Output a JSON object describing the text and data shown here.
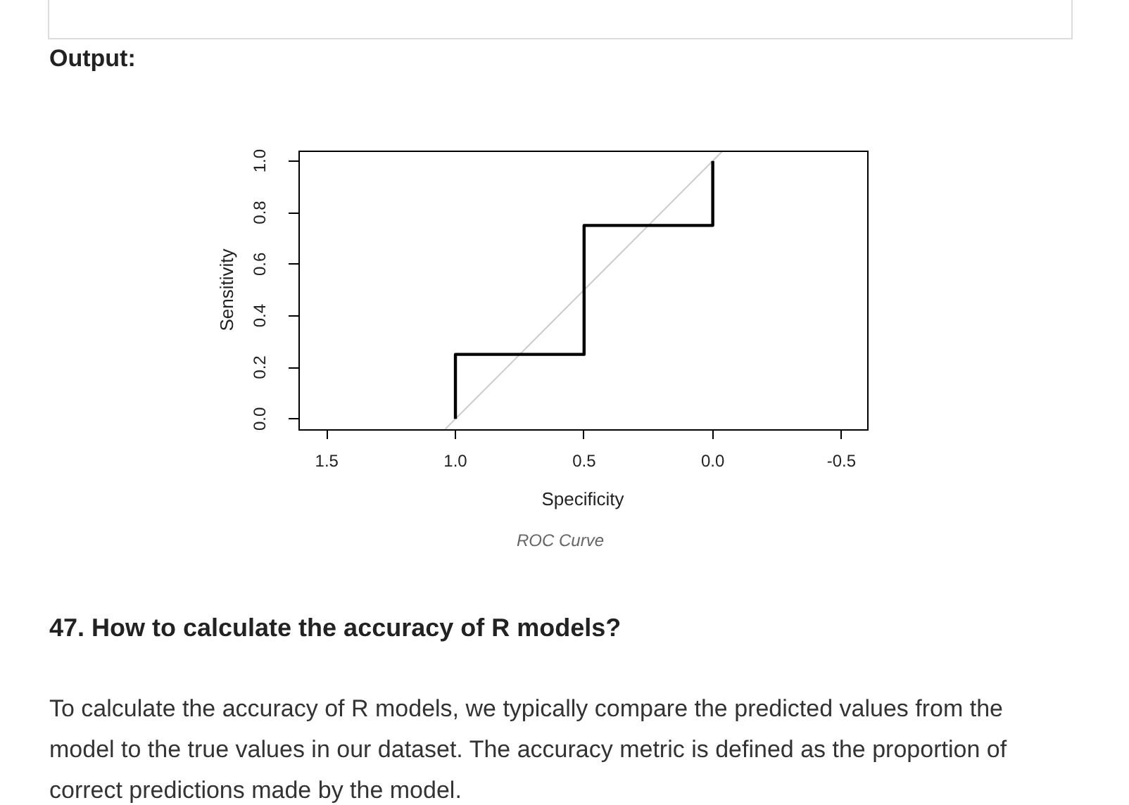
{
  "chart_data": {
    "type": "line",
    "xlabel": "Specificity",
    "ylabel": "Sensitivity",
    "annotations": [
      "Output:",
      "ROC Curve",
      "47. How to calculate the accuracy of R models?",
      "To calculate the accuracy of R models, we typically compare the predicted values from the model to the true values in our dataset. The accuracy metric is defined as the proportion of correct predictions made by the model."
    ],
    "series": [
      {
        "color": "#000000",
        "x": [
          1,
          1,
          0.5,
          0.5,
          0,
          0
        ],
        "values": [
          0,
          0.25,
          0.25,
          0.75,
          0.75,
          1
        ]
      },
      {
        "color": "#cccccc",
        "x": [
          1.04,
          -0.04
        ],
        "values": [
          -0.04,
          1.04
        ]
      }
    ],
    "xlim": [
      1.61,
      -0.6
    ],
    "xticks": [
      1.5,
      {
        "value": 1,
        "label": "1.0"
      },
      0.5,
      {
        "value": 0,
        "label": "0.0"
      },
      -0.5
    ],
    "ylim": [
      -0.04,
      1.04
    ],
    "yticks": [
      {
        "value": 0,
        "label": "0.0"
      },
      0.2,
      0.4,
      0.6,
      0.8,
      {
        "value": 1,
        "label": "1.0"
      }
    ]
  }
}
